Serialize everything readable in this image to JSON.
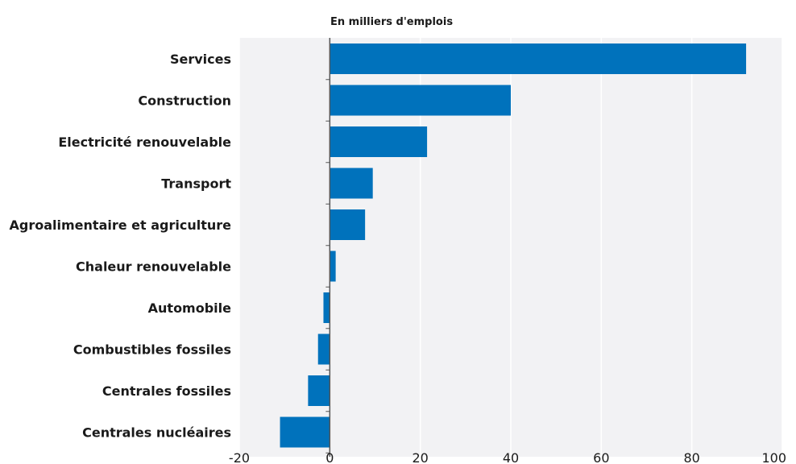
{
  "chart_data": {
    "type": "bar",
    "orientation": "horizontal",
    "unit_label": "En milliers d'emplois",
    "categories": [
      "Services",
      "Construction",
      "Electricité renouvelable",
      "Transport",
      "Agroalimentaire et agriculture",
      "Chaleur renouvelable",
      "Automobile",
      "Combustibles fossiles",
      "Centrales fossiles",
      "Centrales nucléaires"
    ],
    "values": [
      92,
      40,
      21.5,
      9.5,
      7.8,
      1.3,
      -1.4,
      -2.6,
      -4.8,
      -11
    ],
    "xlim": [
      -20,
      100
    ],
    "xticks": [
      -20,
      0,
      20,
      40,
      60,
      80,
      100
    ],
    "grid": "vertical",
    "colors": {
      "bar": "#0072bc",
      "plot_bg": "#f2f2f4",
      "grid": "#ffffff",
      "axis": "#555555"
    }
  }
}
